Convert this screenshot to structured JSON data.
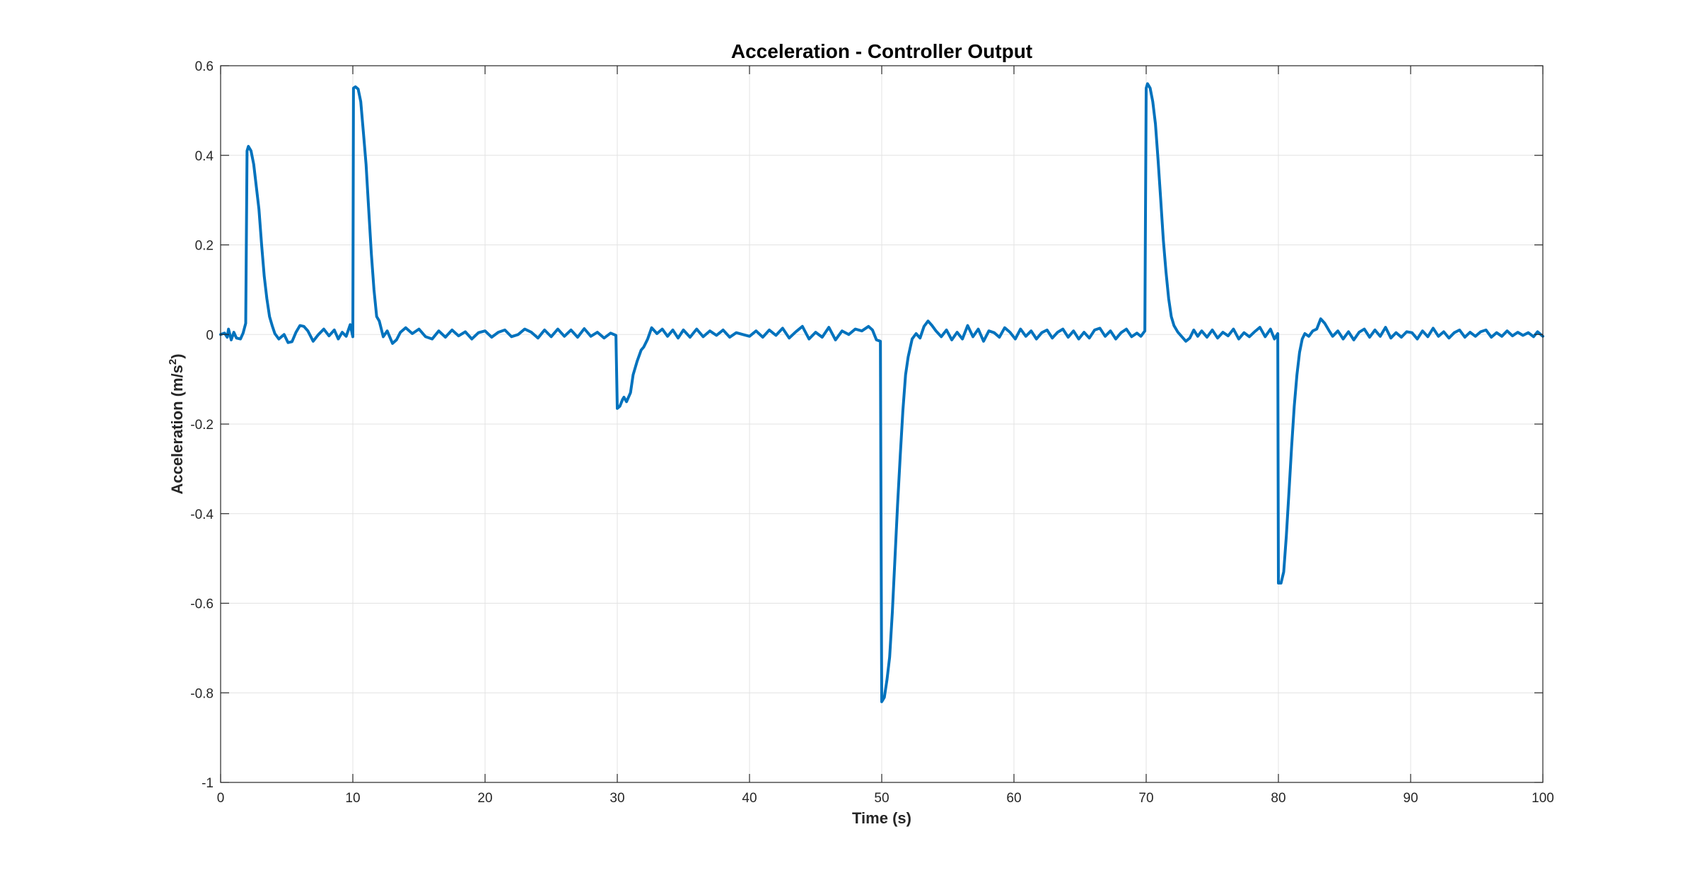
{
  "chart_data": {
    "type": "line",
    "title": "Acceleration - Controller Output",
    "xlabel": "Time (s)",
    "ylabel_main": "Acceleration (m/s",
    "ylabel_sup": "2",
    "ylabel_end": ")",
    "xlim": [
      0,
      100
    ],
    "ylim": [
      -1,
      0.6
    ],
    "xticks": [
      0,
      10,
      20,
      30,
      40,
      50,
      60,
      70,
      80,
      90,
      100
    ],
    "xtick_labels": [
      "0",
      "10",
      "20",
      "30",
      "40",
      "50",
      "60",
      "70",
      "80",
      "90",
      "100"
    ],
    "yticks": [
      -1,
      -0.8,
      -0.6,
      -0.4,
      -0.2,
      0,
      0.2,
      0.4,
      0.6
    ],
    "ytick_labels": [
      "-1",
      "-0.8",
      "-0.6",
      "-0.4",
      "-0.2",
      "0",
      "0.2",
      "0.4",
      "0.6"
    ],
    "grid": true,
    "line_color": "#0072BD",
    "series": [
      {
        "points": [
          [
            0,
            0.0
          ],
          [
            0.3,
            0.003
          ],
          [
            0.5,
            -0.006
          ],
          [
            0.6,
            0.012
          ],
          [
            0.8,
            -0.012
          ],
          [
            1.0,
            0.005
          ],
          [
            1.2,
            -0.008
          ],
          [
            1.5,
            -0.01
          ],
          [
            1.7,
            0.003
          ],
          [
            1.9,
            0.025
          ],
          [
            2.0,
            0.41
          ],
          [
            2.1,
            0.42
          ],
          [
            2.3,
            0.41
          ],
          [
            2.5,
            0.38
          ],
          [
            2.7,
            0.33
          ],
          [
            2.9,
            0.28
          ],
          [
            3.1,
            0.2
          ],
          [
            3.3,
            0.13
          ],
          [
            3.5,
            0.08
          ],
          [
            3.7,
            0.04
          ],
          [
            3.9,
            0.02
          ],
          [
            4.1,
            0.002
          ],
          [
            4.4,
            -0.01
          ],
          [
            4.8,
            0.0
          ],
          [
            5.1,
            -0.018
          ],
          [
            5.4,
            -0.016
          ],
          [
            5.7,
            0.005
          ],
          [
            6.0,
            0.02
          ],
          [
            6.3,
            0.018
          ],
          [
            6.6,
            0.008
          ],
          [
            7.0,
            -0.015
          ],
          [
            7.4,
            0.0
          ],
          [
            7.8,
            0.012
          ],
          [
            8.2,
            -0.003
          ],
          [
            8.6,
            0.01
          ],
          [
            8.9,
            -0.01
          ],
          [
            9.2,
            0.005
          ],
          [
            9.5,
            -0.004
          ],
          [
            9.8,
            0.022
          ],
          [
            10.0,
            -0.005
          ],
          [
            10.05,
            0.55
          ],
          [
            10.2,
            0.553
          ],
          [
            10.4,
            0.548
          ],
          [
            10.6,
            0.52
          ],
          [
            10.8,
            0.45
          ],
          [
            11.0,
            0.38
          ],
          [
            11.2,
            0.28
          ],
          [
            11.4,
            0.18
          ],
          [
            11.6,
            0.1
          ],
          [
            11.8,
            0.04
          ],
          [
            12.0,
            0.03
          ],
          [
            12.3,
            -0.005
          ],
          [
            12.6,
            0.008
          ],
          [
            13.0,
            -0.02
          ],
          [
            13.3,
            -0.012
          ],
          [
            13.6,
            0.005
          ],
          [
            14.0,
            0.015
          ],
          [
            14.5,
            0.002
          ],
          [
            15.0,
            0.012
          ],
          [
            15.5,
            -0.005
          ],
          [
            16.0,
            -0.01
          ],
          [
            16.5,
            0.008
          ],
          [
            17.0,
            -0.006
          ],
          [
            17.5,
            0.01
          ],
          [
            18.0,
            -0.003
          ],
          [
            18.5,
            0.006
          ],
          [
            19.0,
            -0.01
          ],
          [
            19.5,
            0.004
          ],
          [
            20.0,
            0.008
          ],
          [
            20.5,
            -0.006
          ],
          [
            21.0,
            0.005
          ],
          [
            21.5,
            0.01
          ],
          [
            22.0,
            -0.005
          ],
          [
            22.5,
            0.0
          ],
          [
            23.0,
            0.012
          ],
          [
            23.5,
            0.005
          ],
          [
            24.0,
            -0.008
          ],
          [
            24.5,
            0.01
          ],
          [
            25.0,
            -0.005
          ],
          [
            25.5,
            0.012
          ],
          [
            26.0,
            -0.004
          ],
          [
            26.5,
            0.01
          ],
          [
            27.0,
            -0.006
          ],
          [
            27.5,
            0.013
          ],
          [
            28.0,
            -0.004
          ],
          [
            28.5,
            0.005
          ],
          [
            29.0,
            -0.008
          ],
          [
            29.5,
            0.003
          ],
          [
            29.9,
            -0.002
          ],
          [
            30.0,
            -0.165
          ],
          [
            30.2,
            -0.16
          ],
          [
            30.4,
            -0.145
          ],
          [
            30.5,
            -0.14
          ],
          [
            30.7,
            -0.15
          ],
          [
            31.0,
            -0.13
          ],
          [
            31.2,
            -0.09
          ],
          [
            31.5,
            -0.06
          ],
          [
            31.8,
            -0.035
          ],
          [
            32.0,
            -0.028
          ],
          [
            32.3,
            -0.01
          ],
          [
            32.6,
            0.015
          ],
          [
            33.0,
            0.002
          ],
          [
            33.4,
            0.012
          ],
          [
            33.8,
            -0.004
          ],
          [
            34.2,
            0.01
          ],
          [
            34.6,
            -0.008
          ],
          [
            35.0,
            0.01
          ],
          [
            35.5,
            -0.006
          ],
          [
            36.0,
            0.012
          ],
          [
            36.5,
            -0.005
          ],
          [
            37.0,
            0.008
          ],
          [
            37.5,
            -0.002
          ],
          [
            38.0,
            0.01
          ],
          [
            38.5,
            -0.006
          ],
          [
            39.0,
            0.004
          ],
          [
            39.5,
            0.0
          ],
          [
            40.0,
            -0.004
          ],
          [
            40.5,
            0.008
          ],
          [
            41.0,
            -0.006
          ],
          [
            41.5,
            0.01
          ],
          [
            42.0,
            -0.002
          ],
          [
            42.5,
            0.014
          ],
          [
            43.0,
            -0.008
          ],
          [
            43.5,
            0.006
          ],
          [
            44.0,
            0.018
          ],
          [
            44.5,
            -0.01
          ],
          [
            45.0,
            0.005
          ],
          [
            45.5,
            -0.006
          ],
          [
            46.0,
            0.016
          ],
          [
            46.5,
            -0.012
          ],
          [
            47.0,
            0.008
          ],
          [
            47.5,
            0.0
          ],
          [
            48.0,
            0.012
          ],
          [
            48.5,
            0.008
          ],
          [
            49.0,
            0.018
          ],
          [
            49.3,
            0.01
          ],
          [
            49.6,
            -0.012
          ],
          [
            49.9,
            -0.015
          ],
          [
            49.95,
            -0.45
          ],
          [
            50.0,
            -0.82
          ],
          [
            50.2,
            -0.81
          ],
          [
            50.4,
            -0.77
          ],
          [
            50.6,
            -0.72
          ],
          [
            50.8,
            -0.62
          ],
          [
            51.0,
            -0.5
          ],
          [
            51.2,
            -0.38
          ],
          [
            51.4,
            -0.27
          ],
          [
            51.6,
            -0.17
          ],
          [
            51.8,
            -0.09
          ],
          [
            52.0,
            -0.05
          ],
          [
            52.3,
            -0.01
          ],
          [
            52.6,
            0.002
          ],
          [
            52.9,
            -0.008
          ],
          [
            53.2,
            0.018
          ],
          [
            53.5,
            0.03
          ],
          [
            53.8,
            0.02
          ],
          [
            54.1,
            0.008
          ],
          [
            54.5,
            -0.005
          ],
          [
            54.9,
            0.01
          ],
          [
            55.3,
            -0.012
          ],
          [
            55.7,
            0.005
          ],
          [
            56.1,
            -0.01
          ],
          [
            56.5,
            0.02
          ],
          [
            56.9,
            -0.005
          ],
          [
            57.3,
            0.012
          ],
          [
            57.7,
            -0.015
          ],
          [
            58.1,
            0.008
          ],
          [
            58.5,
            0.004
          ],
          [
            58.9,
            -0.006
          ],
          [
            59.3,
            0.015
          ],
          [
            59.7,
            0.005
          ],
          [
            60.1,
            -0.01
          ],
          [
            60.5,
            0.012
          ],
          [
            60.9,
            -0.004
          ],
          [
            61.3,
            0.008
          ],
          [
            61.7,
            -0.01
          ],
          [
            62.1,
            0.004
          ],
          [
            62.5,
            0.01
          ],
          [
            62.9,
            -0.008
          ],
          [
            63.3,
            0.005
          ],
          [
            63.7,
            0.012
          ],
          [
            64.1,
            -0.006
          ],
          [
            64.5,
            0.008
          ],
          [
            64.9,
            -0.01
          ],
          [
            65.3,
            0.005
          ],
          [
            65.7,
            -0.008
          ],
          [
            66.1,
            0.01
          ],
          [
            66.5,
            0.014
          ],
          [
            66.9,
            -0.004
          ],
          [
            67.3,
            0.008
          ],
          [
            67.7,
            -0.01
          ],
          [
            68.1,
            0.004
          ],
          [
            68.5,
            0.012
          ],
          [
            68.9,
            -0.005
          ],
          [
            69.3,
            0.003
          ],
          [
            69.6,
            -0.004
          ],
          [
            69.9,
            0.008
          ],
          [
            70.0,
            0.55
          ],
          [
            70.1,
            0.56
          ],
          [
            70.3,
            0.55
          ],
          [
            70.5,
            0.52
          ],
          [
            70.7,
            0.47
          ],
          [
            70.9,
            0.39
          ],
          [
            71.1,
            0.3
          ],
          [
            71.3,
            0.21
          ],
          [
            71.5,
            0.14
          ],
          [
            71.7,
            0.08
          ],
          [
            71.9,
            0.04
          ],
          [
            72.1,
            0.02
          ],
          [
            72.4,
            0.005
          ],
          [
            72.7,
            -0.005
          ],
          [
            73.0,
            -0.015
          ],
          [
            73.3,
            -0.008
          ],
          [
            73.6,
            0.01
          ],
          [
            73.9,
            -0.004
          ],
          [
            74.2,
            0.008
          ],
          [
            74.6,
            -0.006
          ],
          [
            75.0,
            0.01
          ],
          [
            75.4,
            -0.008
          ],
          [
            75.8,
            0.005
          ],
          [
            76.2,
            -0.003
          ],
          [
            76.6,
            0.012
          ],
          [
            77.0,
            -0.01
          ],
          [
            77.4,
            0.004
          ],
          [
            77.8,
            -0.005
          ],
          [
            78.2,
            0.006
          ],
          [
            78.6,
            0.016
          ],
          [
            79.0,
            -0.005
          ],
          [
            79.4,
            0.012
          ],
          [
            79.7,
            -0.01
          ],
          [
            79.95,
            0.002
          ],
          [
            80.0,
            -0.555
          ],
          [
            80.2,
            -0.555
          ],
          [
            80.4,
            -0.53
          ],
          [
            80.6,
            -0.45
          ],
          [
            80.8,
            -0.35
          ],
          [
            81.0,
            -0.25
          ],
          [
            81.2,
            -0.16
          ],
          [
            81.4,
            -0.09
          ],
          [
            81.6,
            -0.04
          ],
          [
            81.8,
            -0.01
          ],
          [
            82.0,
            0.002
          ],
          [
            82.3,
            -0.004
          ],
          [
            82.6,
            0.008
          ],
          [
            82.9,
            0.012
          ],
          [
            83.2,
            0.035
          ],
          [
            83.5,
            0.025
          ],
          [
            83.8,
            0.01
          ],
          [
            84.1,
            -0.004
          ],
          [
            84.5,
            0.008
          ],
          [
            84.9,
            -0.01
          ],
          [
            85.3,
            0.006
          ],
          [
            85.7,
            -0.012
          ],
          [
            86.1,
            0.005
          ],
          [
            86.5,
            0.012
          ],
          [
            86.9,
            -0.006
          ],
          [
            87.3,
            0.01
          ],
          [
            87.7,
            -0.004
          ],
          [
            88.1,
            0.016
          ],
          [
            88.5,
            -0.008
          ],
          [
            88.9,
            0.004
          ],
          [
            89.3,
            -0.006
          ],
          [
            89.7,
            0.006
          ],
          [
            90.1,
            0.004
          ],
          [
            90.5,
            -0.01
          ],
          [
            90.9,
            0.008
          ],
          [
            91.3,
            -0.005
          ],
          [
            91.7,
            0.014
          ],
          [
            92.1,
            -0.004
          ],
          [
            92.5,
            0.006
          ],
          [
            92.9,
            -0.008
          ],
          [
            93.3,
            0.004
          ],
          [
            93.7,
            0.01
          ],
          [
            94.1,
            -0.006
          ],
          [
            94.5,
            0.005
          ],
          [
            94.9,
            -0.004
          ],
          [
            95.3,
            0.006
          ],
          [
            95.7,
            0.01
          ],
          [
            96.1,
            -0.006
          ],
          [
            96.5,
            0.004
          ],
          [
            96.9,
            -0.004
          ],
          [
            97.3,
            0.008
          ],
          [
            97.7,
            -0.003
          ],
          [
            98.1,
            0.005
          ],
          [
            98.5,
            -0.002
          ],
          [
            98.9,
            0.004
          ],
          [
            99.3,
            -0.005
          ],
          [
            99.6,
            0.006
          ],
          [
            100.0,
            -0.004
          ]
        ]
      }
    ]
  }
}
